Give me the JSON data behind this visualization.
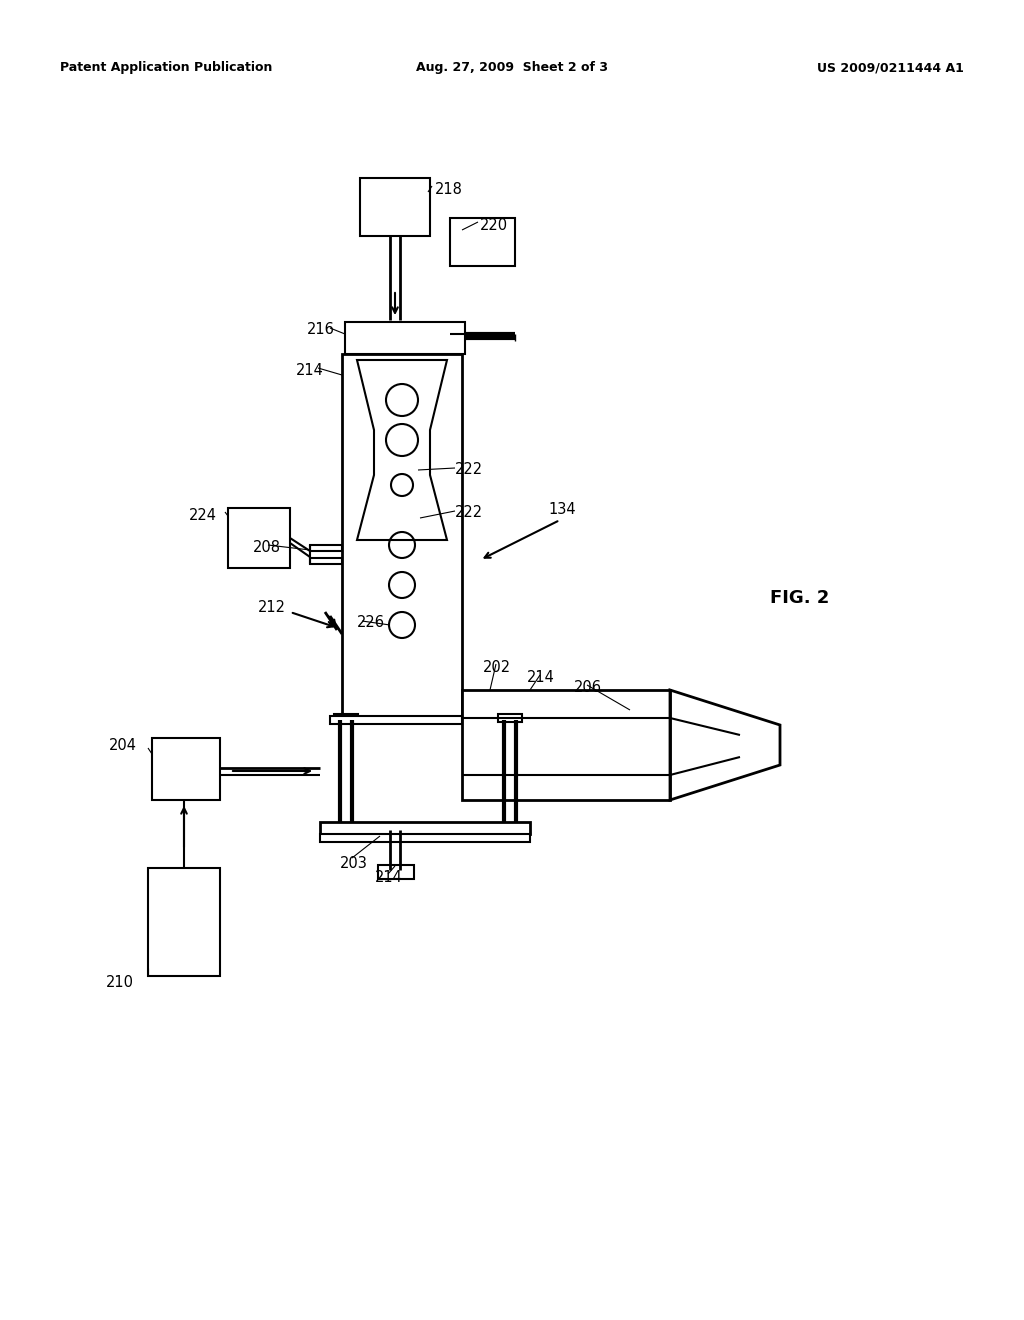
{
  "bg_color": "#ffffff",
  "line_color": "#000000",
  "header_left": "Patent Application Publication",
  "header_mid": "Aug. 27, 2009  Sheet 2 of 3",
  "header_right": "US 2009/0211444 A1"
}
